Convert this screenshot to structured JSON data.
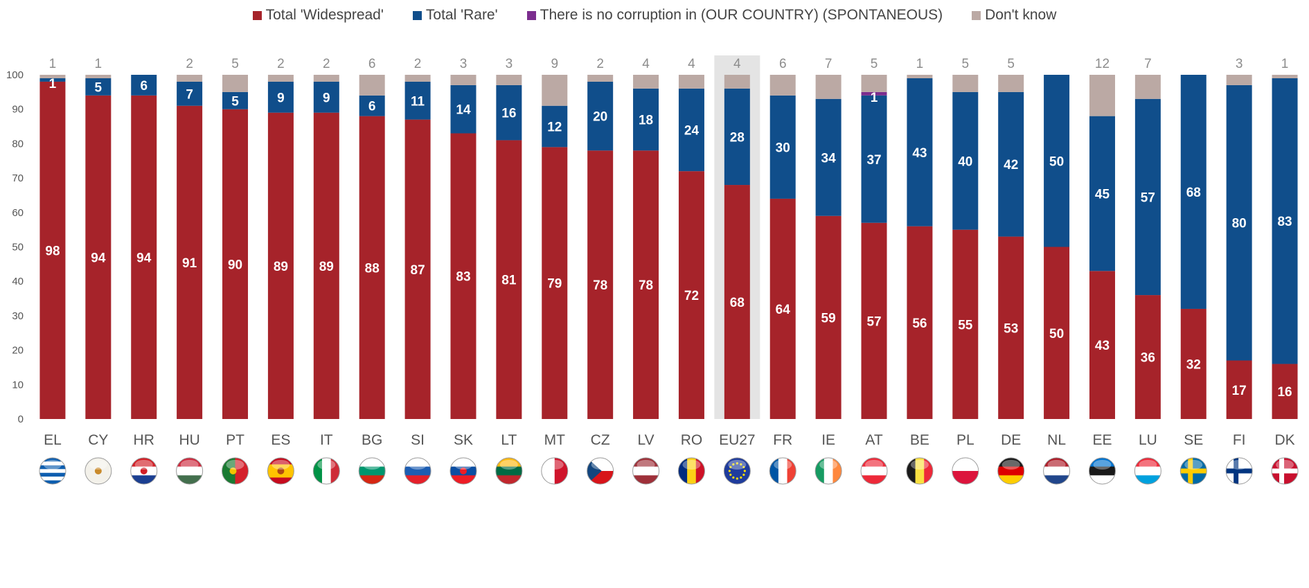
{
  "legend": [
    {
      "label": "Total 'Widespread'",
      "color": "#a6232a"
    },
    {
      "label": "Total 'Rare'",
      "color": "#104e8b"
    },
    {
      "label": "There is no corruption in (OUR COUNTRY) (SPONTANEOUS)",
      "color": "#7b2d8e"
    },
    {
      "label": "Don't know",
      "color": "#bba9a4"
    }
  ],
  "chart_data": {
    "type": "bar",
    "stacked": true,
    "ylim": [
      0,
      100
    ],
    "yticks": [
      "0",
      "10",
      "20",
      "30",
      "40",
      "50",
      "60",
      "70",
      "80",
      "90",
      "100"
    ],
    "grid": false,
    "legend_position": "top",
    "highlight_category": "EU27",
    "categories": [
      "EL",
      "CY",
      "HR",
      "HU",
      "PT",
      "ES",
      "IT",
      "BG",
      "SI",
      "SK",
      "LT",
      "MT",
      "CZ",
      "LV",
      "RO",
      "EU27",
      "FR",
      "IE",
      "AT",
      "BE",
      "PL",
      "DE",
      "NL",
      "EE",
      "LU",
      "SE",
      "FI",
      "DK"
    ],
    "category_icons": [
      "flag-greece-icon",
      "flag-cyprus-icon",
      "flag-croatia-icon",
      "flag-hungary-icon",
      "flag-portugal-icon",
      "flag-spain-icon",
      "flag-italy-icon",
      "flag-bulgaria-icon",
      "flag-slovenia-icon",
      "flag-slovakia-icon",
      "flag-lithuania-icon",
      "flag-malta-icon",
      "flag-czechia-icon",
      "flag-latvia-icon",
      "flag-romania-icon",
      "flag-eu-icon",
      "flag-france-icon",
      "flag-ireland-icon",
      "flag-austria-icon",
      "flag-belgium-icon",
      "flag-poland-icon",
      "flag-germany-icon",
      "flag-netherlands-icon",
      "flag-estonia-icon",
      "flag-luxembourg-icon",
      "flag-sweden-icon",
      "flag-finland-icon",
      "flag-denmark-icon"
    ],
    "series": [
      {
        "name": "Total 'Widespread'",
        "color": "#a6232a",
        "values": [
          98,
          94,
          94,
          91,
          90,
          89,
          89,
          88,
          87,
          83,
          81,
          79,
          78,
          78,
          72,
          68,
          64,
          59,
          57,
          56,
          55,
          53,
          50,
          43,
          36,
          32,
          17,
          16
        ]
      },
      {
        "name": "Total 'Rare'",
        "color": "#104e8b",
        "values": [
          1,
          5,
          6,
          7,
          5,
          9,
          9,
          6,
          11,
          14,
          16,
          12,
          20,
          18,
          24,
          28,
          30,
          34,
          37,
          43,
          40,
          42,
          50,
          45,
          57,
          68,
          80,
          83
        ]
      },
      {
        "name": "There is no corruption in (OUR COUNTRY) (SPONTANEOUS)",
        "color": "#7b2d8e",
        "values": [
          0,
          0,
          0,
          0,
          0,
          0,
          0,
          0,
          0,
          0,
          0,
          0,
          0,
          0,
          0,
          0,
          0,
          0,
          1,
          0,
          0,
          0,
          0,
          0,
          0,
          0,
          0,
          0
        ]
      },
      {
        "name": "Don't know",
        "color": "#bba9a4",
        "values": [
          1,
          1,
          0,
          2,
          5,
          2,
          2,
          6,
          2,
          3,
          3,
          9,
          2,
          4,
          4,
          4,
          6,
          7,
          5,
          1,
          5,
          5,
          0,
          12,
          7,
          0,
          3,
          1
        ]
      }
    ]
  }
}
